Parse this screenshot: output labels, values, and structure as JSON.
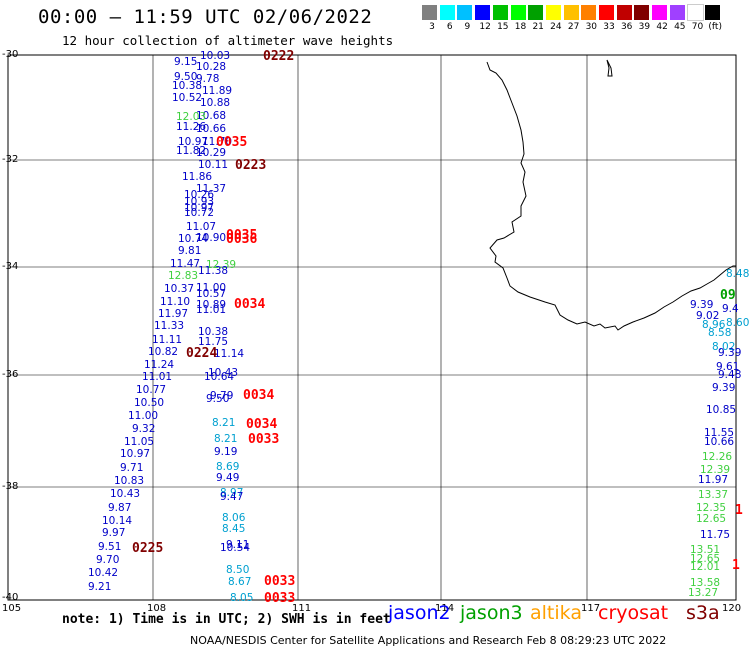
{
  "header": {
    "title": "00:00 – 11:59 UTC 02/06/2022",
    "subtitle": "12 hour collection of altimeter wave heights"
  },
  "legend": {
    "colors": [
      "#808080",
      "#00ffff",
      "#00c0ff",
      "#0000ff",
      "#00c000",
      "#00ff00",
      "#00a000",
      "#ffff00",
      "#ffc000",
      "#ff8000",
      "#ff0000",
      "#c00000",
      "#800000",
      "#ff00ff",
      "#a040ff",
      "#ffffff",
      "#000000"
    ],
    "labels": [
      "3",
      "6",
      "9",
      "12",
      "15",
      "18",
      "21",
      "24",
      "27",
      "30",
      "33",
      "36",
      "39",
      "42",
      "45",
      "70",
      "(ft)"
    ]
  },
  "axes": {
    "lat_labels": [
      "-30",
      "-32",
      "-34",
      "-36",
      "-38",
      "-40"
    ],
    "lon_labels": [
      "105",
      "108",
      "111",
      "114",
      "117",
      "120"
    ]
  },
  "track_a": [
    {
      "v": "10.03",
      "c": "#0000c8"
    },
    {
      "v": "9.15",
      "c": "#0000c8"
    },
    {
      "v": "10.28",
      "c": "#0000c8"
    },
    {
      "v": "9.50",
      "c": "#0000c8"
    },
    {
      "v": "9.78",
      "c": "#0000c8"
    },
    {
      "v": "10.38",
      "c": "#0000c8"
    },
    {
      "v": "11.89",
      "c": "#0000c8"
    },
    {
      "v": "10.52",
      "c": "#0000c8"
    },
    {
      "v": "10.88",
      "c": "#0000c8"
    },
    {
      "v": "10.68",
      "c": "#0000c8"
    },
    {
      "v": "12.03",
      "c": "#40d040"
    },
    {
      "v": "11.26",
      "c": "#0000c8"
    },
    {
      "v": "10.66",
      "c": "#0000c8"
    },
    {
      "v": "10.97",
      "c": "#0000c8"
    },
    {
      "v": "11.70",
      "c": "#0000c8"
    },
    {
      "v": "11.82",
      "c": "#0000c8"
    },
    {
      "v": "10.29",
      "c": "#0000c8"
    },
    {
      "v": "10.11",
      "c": "#0000c8"
    },
    {
      "v": "11.86",
      "c": "#0000c8"
    },
    {
      "v": "11.37",
      "c": "#0000c8"
    },
    {
      "v": "10.26",
      "c": "#0000c8"
    },
    {
      "v": "10.93",
      "c": "#0000c8"
    },
    {
      "v": "10.97",
      "c": "#0000c8"
    },
    {
      "v": "10.72",
      "c": "#0000c8"
    },
    {
      "v": "11.07",
      "c": "#0000c8"
    },
    {
      "v": "10.74",
      "c": "#0000c8"
    },
    {
      "v": "10.90",
      "c": "#0000c8"
    },
    {
      "v": "9.81",
      "c": "#0000c8"
    },
    {
      "v": "11.47",
      "c": "#0000c8"
    },
    {
      "v": "12.39",
      "c": "#40d040"
    },
    {
      "v": "12.83",
      "c": "#40d040"
    },
    {
      "v": "11.38",
      "c": "#0000c8"
    },
    {
      "v": "11.00",
      "c": "#0000c8"
    },
    {
      "v": "10.37",
      "c": "#0000c8"
    },
    {
      "v": "10.57",
      "c": "#0000c8"
    },
    {
      "v": "11.10",
      "c": "#0000c8"
    },
    {
      "v": "10.89",
      "c": "#0000c8"
    },
    {
      "v": "11.97",
      "c": "#0000c8"
    },
    {
      "v": "11.01",
      "c": "#0000c8"
    },
    {
      "v": "11.33",
      "c": "#0000c8"
    },
    {
      "v": "10.38",
      "c": "#0000c8"
    },
    {
      "v": "11.11",
      "c": "#0000c8"
    },
    {
      "v": "11.75",
      "c": "#0000c8"
    },
    {
      "v": "10.82",
      "c": "#0000c8"
    },
    {
      "v": "11.14",
      "c": "#0000c8"
    },
    {
      "v": "11.24",
      "c": "#0000c8"
    },
    {
      "v": "10.43",
      "c": "#0000c8"
    },
    {
      "v": "11.01",
      "c": "#0000c8"
    },
    {
      "v": "10.64",
      "c": "#0000c8"
    },
    {
      "v": "10.77",
      "c": "#0000c8"
    },
    {
      "v": "9.79",
      "c": "#0000c8"
    },
    {
      "v": "9.50",
      "c": "#0000c8"
    },
    {
      "v": "10.50",
      "c": "#0000c8"
    },
    {
      "v": "11.00",
      "c": "#0000c8"
    },
    {
      "v": "8.21",
      "c": "#00a0d0"
    },
    {
      "v": "9.32",
      "c": "#0000c8"
    },
    {
      "v": "8.21",
      "c": "#00a0d0"
    },
    {
      "v": "11.05",
      "c": "#0000c8"
    },
    {
      "v": "9.19",
      "c": "#0000c8"
    },
    {
      "v": "10.97",
      "c": "#0000c8"
    },
    {
      "v": "8.69",
      "c": "#00a0d0"
    },
    {
      "v": "9.71",
      "c": "#0000c8"
    },
    {
      "v": "9.49",
      "c": "#0000c8"
    },
    {
      "v": "10.83",
      "c": "#0000c8"
    },
    {
      "v": "8.97",
      "c": "#00a0d0"
    },
    {
      "v": "10.43",
      "c": "#0000c8"
    },
    {
      "v": "9.47",
      "c": "#0000c8"
    },
    {
      "v": "9.87",
      "c": "#0000c8"
    },
    {
      "v": "8.06",
      "c": "#00a0d0"
    },
    {
      "v": "10.14",
      "c": "#0000c8"
    },
    {
      "v": "8.45",
      "c": "#00a0d0"
    },
    {
      "v": "9.97",
      "c": "#0000c8"
    },
    {
      "v": "9.11",
      "c": "#0000c8"
    },
    {
      "v": "9.51",
      "c": "#0000c8"
    },
    {
      "v": "10.54",
      "c": "#0000c8"
    },
    {
      "v": "9.70",
      "c": "#0000c8"
    },
    {
      "v": "8.50",
      "c": "#00a0d0"
    },
    {
      "v": "10.42",
      "c": "#0000c8"
    },
    {
      "v": "8.67",
      "c": "#00a0d0"
    },
    {
      "v": "9.21",
      "c": "#0000c8"
    },
    {
      "v": "8.05",
      "c": "#00a0d0"
    }
  ],
  "track_b": [
    {
      "v": "8.48",
      "c": "#00a0d0"
    },
    {
      "v": "9.39",
      "c": "#0000c8"
    },
    {
      "v": "9.4",
      "c": "#0000c8"
    },
    {
      "v": "9.02",
      "c": "#0000c8"
    },
    {
      "v": "8.96",
      "c": "#00a0d0"
    },
    {
      "v": "8.60",
      "c": "#00a0d0"
    },
    {
      "v": "8.58",
      "c": "#00a0d0"
    },
    {
      "v": "8.02",
      "c": "#00a0d0"
    },
    {
      "v": "9.39",
      "c": "#0000c8"
    },
    {
      "v": "9.61",
      "c": "#0000c8"
    },
    {
      "v": "9.48",
      "c": "#0000c8"
    },
    {
      "v": "9.39",
      "c": "#0000c8"
    },
    {
      "v": "10.85",
      "c": "#0000c8"
    },
    {
      "v": "11.55",
      "c": "#0000c8"
    },
    {
      "v": "10.66",
      "c": "#0000c8"
    },
    {
      "v": "12.26",
      "c": "#40d040"
    },
    {
      "v": "12.39",
      "c": "#40d040"
    },
    {
      "v": "11.97",
      "c": "#0000c8"
    },
    {
      "v": "13.37",
      "c": "#40d040"
    },
    {
      "v": "12.35",
      "c": "#40d040"
    },
    {
      "v": "12.65",
      "c": "#40d040"
    },
    {
      "v": "11.75",
      "c": "#0000c8"
    },
    {
      "v": "13.51",
      "c": "#40d040"
    },
    {
      "v": "12.65",
      "c": "#40d040"
    },
    {
      "v": "12.01",
      "c": "#40d040"
    },
    {
      "v": "13.58",
      "c": "#40d040"
    },
    {
      "v": "13.27",
      "c": "#40d040"
    }
  ],
  "time_labels": [
    {
      "v": "0222",
      "c": "#800000"
    },
    {
      "v": "0035",
      "c": "#ff0000"
    },
    {
      "v": "0223",
      "c": "#800000"
    },
    {
      "v": "0035",
      "c": "#ff0000"
    },
    {
      "v": "0036",
      "c": "#ff0000"
    },
    {
      "v": "0034",
      "c": "#ff0000"
    },
    {
      "v": "0224",
      "c": "#800000"
    },
    {
      "v": "0034",
      "c": "#ff0000"
    },
    {
      "v": "0034",
      "c": "#ff0000"
    },
    {
      "v": "0033",
      "c": "#ff0000"
    },
    {
      "v": "0225",
      "c": "#800000"
    },
    {
      "v": "0033",
      "c": "#ff0000"
    },
    {
      "v": "0033",
      "c": "#ff0000"
    },
    {
      "v": "09",
      "c": "#00a000"
    },
    {
      "v": "1",
      "c": "#ff0000"
    },
    {
      "v": "1",
      "c": "#ff0000"
    }
  ],
  "footer": {
    "note": "note: 1) Time is in UTC; 2) SWH is in feet",
    "credit": "NOAA/NESDIS Center for Satellite Applications and Research   Feb  8 08:29:23 UTC 2022",
    "satellites": [
      {
        "name": "jason2",
        "color": "#0000ff"
      },
      {
        "name": "jason3",
        "color": "#00a000"
      },
      {
        "name": "altika",
        "color": "#ffa000"
      },
      {
        "name": "cryosat",
        "color": "#ff0000"
      },
      {
        "name": "s3a",
        "color": "#800000"
      }
    ]
  }
}
